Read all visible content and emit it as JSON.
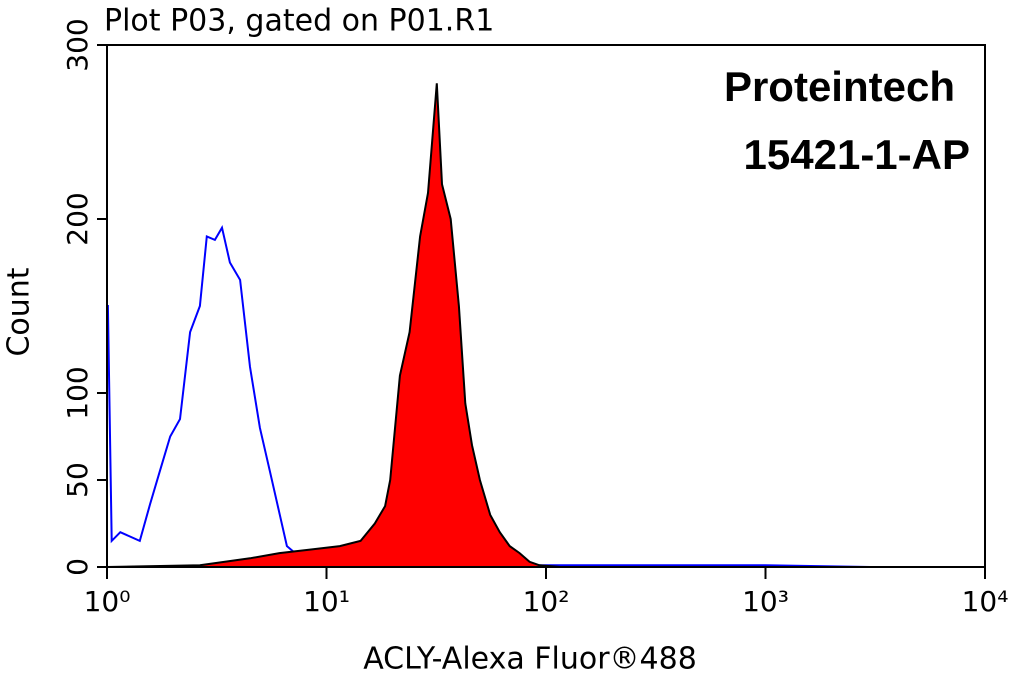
{
  "chart_data": {
    "type": "line",
    "title": "Plot P03, gated on P01.R1",
    "annotations": [
      "Proteintech",
      "15421-1-AP"
    ],
    "xlabel": "ACLY-Alexa Fluor®488",
    "ylabel": "Count",
    "log_x": true,
    "xlim": [
      1,
      10000
    ],
    "ylim": [
      0,
      300
    ],
    "xticks": [
      {
        "value": 1,
        "label": "10⁰"
      },
      {
        "value": 10,
        "label": "10¹"
      },
      {
        "value": 100,
        "label": "10²"
      },
      {
        "value": 1000,
        "label": "10³"
      },
      {
        "value": 10000,
        "label": "10⁴"
      }
    ],
    "yticks": [
      0,
      50,
      100,
      200,
      300
    ],
    "series": [
      {
        "color": "#0000ff",
        "fill": false,
        "x": [
          1,
          1.01,
          1.05,
          1.15,
          1.41,
          1.57,
          1.74,
          1.94,
          2.15,
          2.39,
          2.65,
          2.85,
          3.1,
          3.34,
          3.63,
          4.04,
          4.48,
          4.97,
          5.52,
          6.13,
          6.6,
          7.2,
          8.0,
          9.3,
          12.8,
          100,
          1000,
          3000
        ],
        "values": [
          150,
          150,
          15,
          20,
          15,
          36,
          55,
          75,
          85,
          135,
          150,
          190,
          188,
          195,
          175,
          165,
          115,
          80,
          55,
          30,
          12,
          8,
          3,
          1,
          0,
          1,
          1,
          0
        ]
      },
      {
        "color": "#ff0000",
        "outline": "#000000",
        "fill": true,
        "x": [
          1,
          2.65,
          4.48,
          6.1,
          8.4,
          11.5,
          14.3,
          16.6,
          18.5,
          19.5,
          21.6,
          23.9,
          26.7,
          29.0,
          31.2,
          31.8,
          33.6,
          36.8,
          40.1,
          42.9,
          46.0,
          50.0,
          55.7,
          61.6,
          68.3,
          75.8,
          84.1,
          93.4,
          116,
          10000
        ],
        "values": [
          0,
          1,
          5,
          8,
          10,
          12,
          15,
          25,
          35,
          50,
          110,
          135,
          190,
          215,
          265,
          278,
          220,
          200,
          150,
          94,
          70,
          50,
          30,
          20,
          12,
          8,
          3,
          1,
          0,
          0
        ]
      }
    ]
  }
}
